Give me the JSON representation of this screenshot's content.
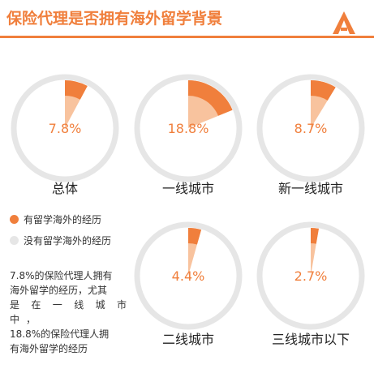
{
  "header": {
    "title": "保险代理是否拥有海外留学背景"
  },
  "legend": [
    {
      "label": "有留学海外的经历",
      "color": "#f07f3c"
    },
    {
      "label": "没有留学海外的经历",
      "color": "#e6e6e6"
    }
  ],
  "note": {
    "line1": "7.8%的保险代理人拥有",
    "line2": "海外留学的经历，尤其",
    "line3": "是在一线城市中，",
    "line4": "18.8%的保险代理人拥",
    "line5": "有海外留学的经历"
  },
  "chart_data": {
    "type": "pie",
    "title": "保险代理是否拥有海外留学背景",
    "series_names": [
      "有留学海外的经历",
      "没有留学海外的经历"
    ],
    "charts": [
      {
        "category": "总体",
        "value": 7.8,
        "label": "7.8%"
      },
      {
        "category": "一线城市",
        "value": 18.8,
        "label": "18.8%"
      },
      {
        "category": "新一线城市",
        "value": 8.7,
        "label": "8.7%"
      },
      {
        "category": "二线城市",
        "value": 4.4,
        "label": "4.4%"
      },
      {
        "category": "三线城市以下",
        "value": 2.7,
        "label": "2.7%"
      }
    ],
    "colors": {
      "accent": "#f07f3c",
      "light": "#f8c39e",
      "ring": "#e6e6e6"
    },
    "legend_position": "left"
  }
}
